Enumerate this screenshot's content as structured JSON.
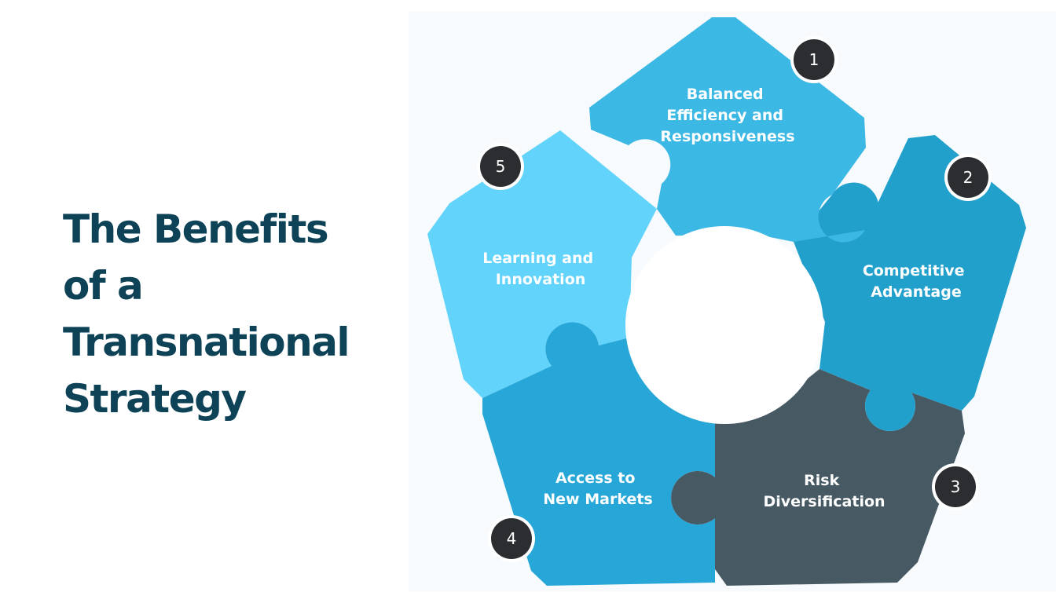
{
  "title": {
    "line1": "The Benefits",
    "line2": "of a",
    "line3": "Transnational",
    "line4": "Strategy"
  },
  "pieces": [
    {
      "number": "1",
      "lines": [
        "Balanced",
        "Efficiency and",
        "Responsiveness"
      ],
      "color": "#3cb8e4"
    },
    {
      "number": "2",
      "lines": [
        "Competitive",
        "Advantage"
      ],
      "color": "#22a0cc"
    },
    {
      "number": "3",
      "lines": [
        "Risk",
        "Diversification"
      ],
      "color": "#475a64"
    },
    {
      "number": "4",
      "lines": [
        "Access to",
        "New Markets"
      ],
      "color": "#27a6d8"
    },
    {
      "number": "5",
      "lines": [
        "Learning and",
        "Innovation"
      ],
      "color": "#62d3fb"
    }
  ],
  "colors": {
    "title": "#0d4257",
    "badge": "#2b2d30",
    "background": "#f7fbfd"
  }
}
